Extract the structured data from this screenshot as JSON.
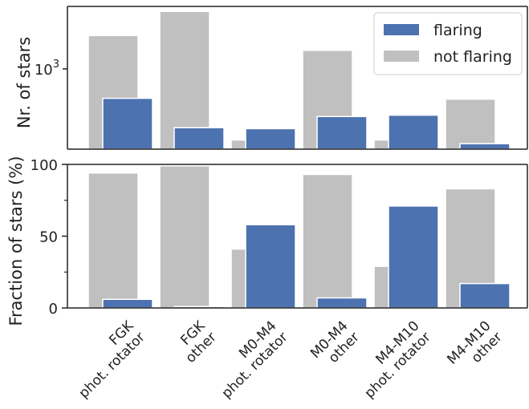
{
  "chart_data": [
    {
      "type": "bar",
      "yscale": "log",
      "ylabel": "Nr. of stars",
      "yticks": [
        {
          "value": 1000,
          "base": "10",
          "exp": "3"
        }
      ],
      "ylim": [
        100,
        6000
      ],
      "categories": [
        "FGK\nphot. rotator",
        "FGK\nother",
        "M0-M4\nphot. rotator",
        "M0-M4\nother",
        "M4-M10\nphot. rotator",
        "M4-M10\nother"
      ],
      "series": [
        {
          "name": "not flaring",
          "color": "#c0c0c0",
          "values": [
            2600,
            5200,
            130,
            1700,
            130,
            420
          ]
        },
        {
          "name": "flaring",
          "color": "#4c72b0",
          "values": [
            430,
            185,
            180,
            255,
            265,
            117
          ]
        }
      ],
      "legend": {
        "position": "top-right"
      }
    },
    {
      "type": "bar",
      "ylabel": "Fraction of stars (%)",
      "ylim": [
        0,
        100
      ],
      "yticks": [
        0,
        50,
        100
      ],
      "categories": [
        "FGK\nphot. rotator",
        "FGK\nother",
        "M0-M4\nphot. rotator",
        "M0-M4\nother",
        "M4-M10\nphot. rotator",
        "M4-M10\nother"
      ],
      "series": [
        {
          "name": "not flaring",
          "color": "#c0c0c0",
          "values": [
            94,
            99,
            41,
            93,
            29,
            83
          ]
        },
        {
          "name": "flaring",
          "color": "#4c72b0",
          "values": [
            6,
            1,
            58,
            7,
            71,
            17
          ]
        }
      ]
    }
  ]
}
